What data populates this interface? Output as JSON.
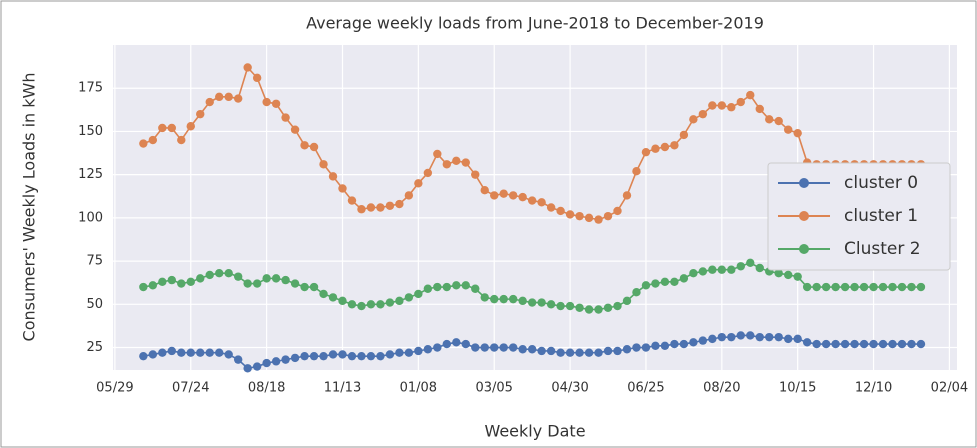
{
  "chart_data": {
    "type": "line",
    "title": "Average weekly loads from June-2018 to December-2019",
    "xlabel": "Weekly Date",
    "ylabel": "Consumers' Weekly Loads in kWh",
    "x": [
      3,
      4,
      5,
      6,
      7,
      8,
      9,
      10,
      11,
      12,
      13,
      14,
      15,
      16,
      17,
      18,
      19,
      20,
      21,
      22,
      23,
      24,
      25,
      26,
      27,
      28,
      29,
      30,
      31,
      32,
      33,
      34,
      35,
      36,
      37,
      38,
      39,
      40,
      41,
      42,
      43,
      44,
      45,
      46,
      47,
      48,
      49,
      50,
      51,
      52,
      53,
      54,
      55,
      56,
      57,
      58,
      59,
      60,
      61,
      62,
      63,
      64,
      65,
      66,
      67,
      68,
      69,
      70,
      71,
      72,
      73,
      74,
      75,
      76,
      77,
      78,
      79,
      80,
      81,
      82,
      83,
      84,
      85
    ],
    "series": [
      {
        "name": "cluster 0",
        "color": "#4c72b0",
        "values": [
          20,
          21,
          22,
          23,
          22,
          22,
          22,
          22,
          22,
          21,
          18,
          13,
          14,
          16,
          17,
          18,
          19,
          20,
          20,
          20,
          21,
          21,
          20,
          20,
          20,
          20,
          21,
          22,
          22,
          23,
          24,
          25,
          27,
          28,
          27,
          25,
          25,
          25,
          25,
          25,
          24,
          24,
          23,
          23,
          22,
          22,
          22,
          22,
          22,
          23,
          23,
          24,
          25,
          25,
          26,
          26,
          27,
          27,
          28,
          29,
          30,
          31,
          31,
          32,
          32,
          31,
          31,
          31,
          30,
          30,
          28,
          27,
          27,
          27,
          27,
          27,
          27,
          27,
          27,
          27,
          27,
          27,
          27
        ]
      },
      {
        "name": "cluster 1",
        "color": "#dd8452",
        "values": [
          143,
          145,
          152,
          152,
          145,
          153,
          160,
          167,
          170,
          170,
          169,
          187,
          181,
          167,
          166,
          158,
          151,
          142,
          141,
          131,
          124,
          117,
          110,
          105,
          106,
          106,
          107,
          108,
          113,
          120,
          126,
          137,
          131,
          133,
          132,
          125,
          116,
          113,
          114,
          113,
          112,
          110,
          109,
          106,
          104,
          102,
          101,
          100,
          99,
          101,
          104,
          113,
          127,
          138,
          140,
          141,
          142,
          148,
          157,
          160,
          165,
          165,
          164,
          167,
          171,
          163,
          157,
          156,
          151,
          149,
          132,
          131,
          131,
          131,
          131,
          131,
          131,
          131,
          131,
          131,
          131,
          131,
          131
        ]
      },
      {
        "name": "Cluster 2",
        "color": "#55a868",
        "values": [
          60,
          61,
          63,
          64,
          62,
          63,
          65,
          67,
          68,
          68,
          66,
          62,
          62,
          65,
          65,
          64,
          62,
          60,
          60,
          56,
          54,
          52,
          50,
          49,
          50,
          50,
          51,
          52,
          54,
          56,
          59,
          60,
          60,
          61,
          61,
          59,
          54,
          53,
          53,
          53,
          52,
          51,
          51,
          50,
          49,
          49,
          48,
          47,
          47,
          48,
          49,
          52,
          57,
          61,
          62,
          63,
          63,
          65,
          68,
          69,
          70,
          70,
          70,
          72,
          74,
          71,
          69,
          68,
          67,
          66,
          60,
          60,
          60,
          60,
          60,
          60,
          60,
          60,
          60,
          60,
          60,
          60,
          60
        ]
      }
    ],
    "xlim": [
      -0.2,
      88.8
    ],
    "xticks": [
      {
        "value": 0,
        "label": "05/29"
      },
      {
        "value": 8,
        "label": "07/24"
      },
      {
        "value": 16,
        "label": "08/18"
      },
      {
        "value": 24,
        "label": "11/13"
      },
      {
        "value": 32,
        "label": "01/08"
      },
      {
        "value": 40,
        "label": "03/05"
      },
      {
        "value": 48,
        "label": "04/30"
      },
      {
        "value": 56,
        "label": "06/25"
      },
      {
        "value": 64,
        "label": "08/20"
      },
      {
        "value": 72,
        "label": "10/15"
      },
      {
        "value": 80,
        "label": "12/10"
      },
      {
        "value": 88,
        "label": "02/04"
      }
    ],
    "ylim": [
      12,
      200
    ],
    "yticks": [
      25,
      50,
      75,
      100,
      125,
      150,
      175
    ],
    "grid": true,
    "legend": "right"
  }
}
